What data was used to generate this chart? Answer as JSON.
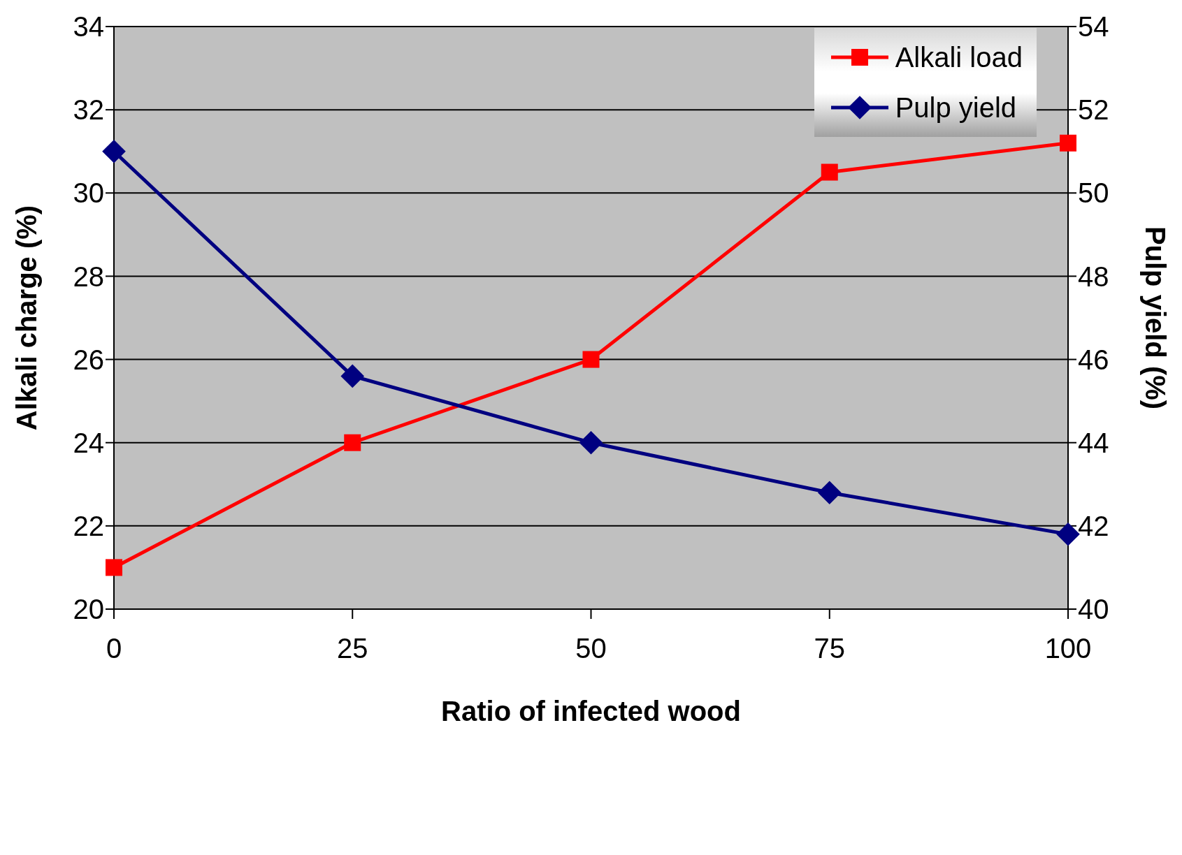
{
  "chart_data": {
    "type": "line",
    "xlabel": "Ratio of infected wood",
    "ylabel": "Alkali charge (%)",
    "y2label": "Pulp yield (%)",
    "categories": [
      "0",
      "25",
      "50",
      "75",
      "100"
    ],
    "series": [
      {
        "name": "Alkali load",
        "color": "#ff0000",
        "marker": "square",
        "values": [
          21,
          24,
          26,
          30.5,
          31.2
        ]
      },
      {
        "name": "Pulp yield",
        "color": "#000080",
        "marker": "diamond",
        "axis": "y2",
        "values": [
          51,
          45.6,
          44,
          42.8,
          41.8
        ]
      }
    ],
    "ylim": [
      20,
      34
    ],
    "yticks": [
      20,
      22,
      24,
      26,
      28,
      30,
      32,
      34
    ],
    "y2lim": [
      40,
      54
    ],
    "y2ticks": [
      40,
      42,
      44,
      46,
      48,
      50,
      52,
      54
    ],
    "grid": "y",
    "legend": "top right",
    "line_style": "solid"
  }
}
